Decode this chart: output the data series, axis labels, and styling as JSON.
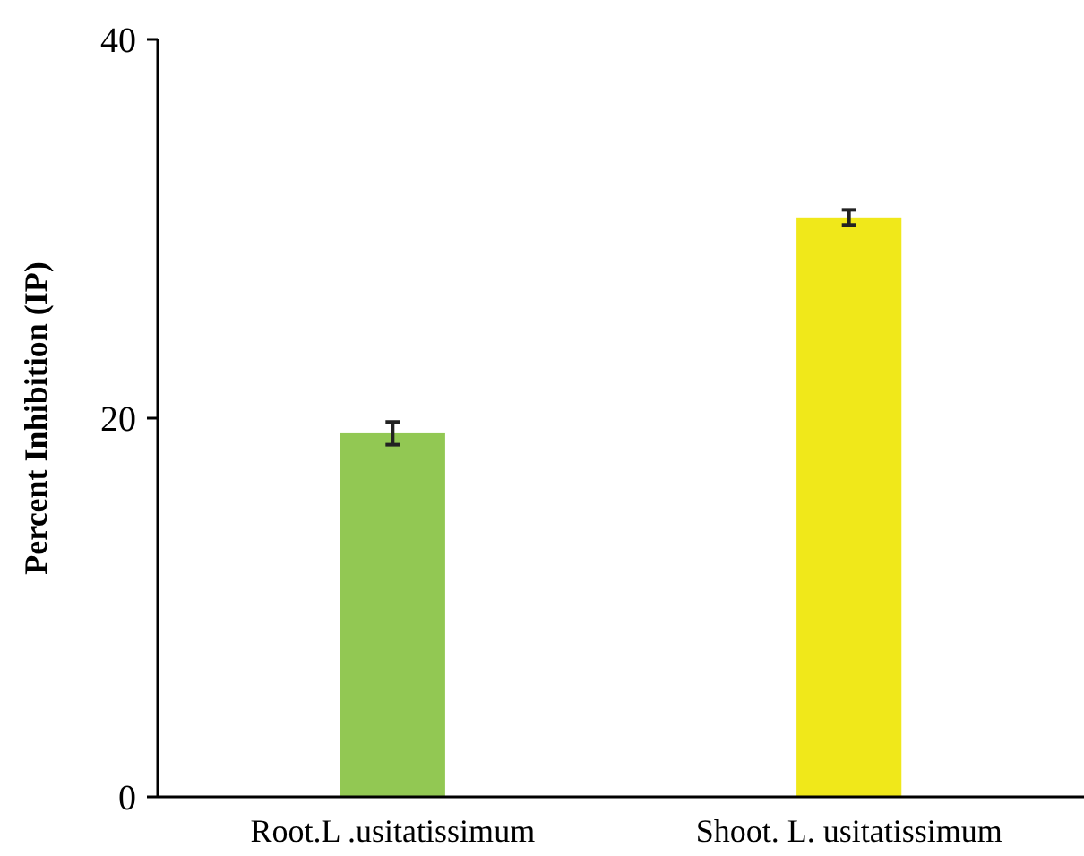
{
  "chart_data": {
    "type": "bar",
    "ylabel": "Percent Inhibition (IP)",
    "categories": [
      "Root.L .usitatissimum",
      "Shoot. L. usitatissimum"
    ],
    "values": [
      19.2,
      30.6
    ],
    "errors": [
      0.6,
      0.4
    ],
    "colors": [
      "#92c853",
      "#f0e81a"
    ],
    "ylim": [
      0,
      40
    ],
    "yticks": [
      0,
      20,
      40
    ],
    "grid": false
  }
}
